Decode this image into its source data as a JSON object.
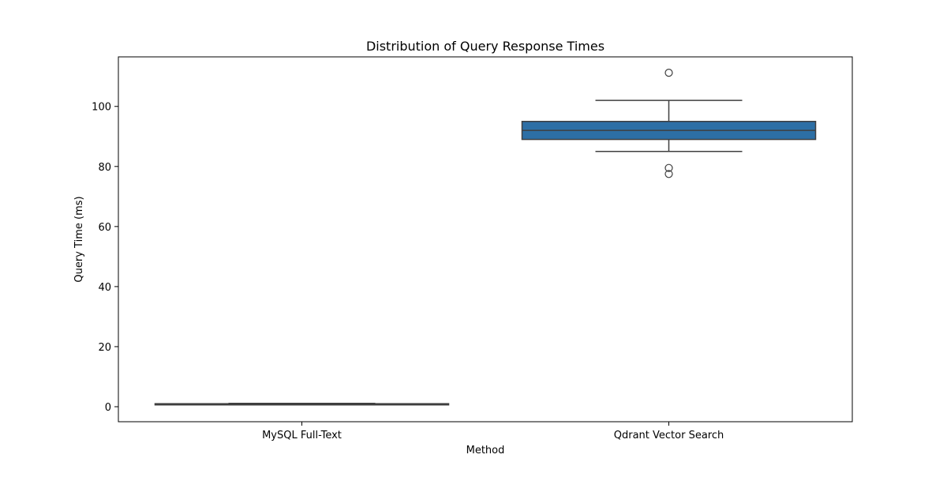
{
  "chart_data": {
    "type": "box",
    "title": "Distribution of Query Response Times",
    "xlabel": "Method",
    "ylabel": "Query Time (ms)",
    "ylim": [
      -5,
      116.5
    ],
    "yticks": [
      0,
      20,
      40,
      60,
      80,
      100
    ],
    "grid": false,
    "legend": "none",
    "categories": [
      "MySQL Full-Text",
      "Qdrant Vector Search"
    ],
    "boxes": [
      {
        "category": "MySQL Full-Text",
        "whisker_low": 0.7,
        "q1": 0.8,
        "median": 0.9,
        "q3": 1.0,
        "whisker_high": 1.1,
        "outliers": [],
        "fill": "#1f77b4"
      },
      {
        "category": "Qdrant Vector Search",
        "whisker_low": 85.0,
        "q1": 89.0,
        "median": 92.0,
        "q3": 95.0,
        "whisker_high": 102.0,
        "outliers": [
          111.2,
          79.5,
          77.5
        ],
        "fill": "#2d6fa5"
      }
    ],
    "colors": {
      "line": "#3f3f3f",
      "axes": "#000000"
    }
  }
}
